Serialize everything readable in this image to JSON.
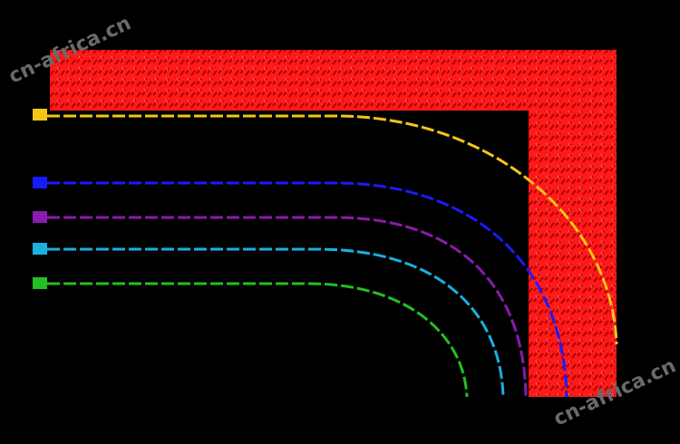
{
  "watermarks": [
    "cn-africa.cn",
    "cn-africa.cn"
  ]
}
